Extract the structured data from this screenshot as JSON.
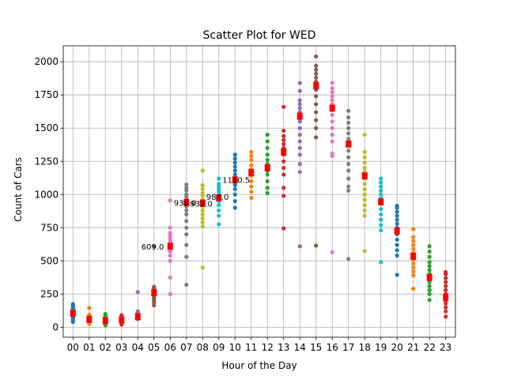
{
  "chart_data": {
    "type": "scatter",
    "title": "Scatter Plot for WED",
    "xlabel": "Hour of the Day",
    "ylabel": "Count of Cars",
    "categories": [
      "00",
      "01",
      "02",
      "03",
      "04",
      "05",
      "06",
      "07",
      "08",
      "09",
      "10",
      "11",
      "12",
      "13",
      "14",
      "15",
      "16",
      "17",
      "18",
      "19",
      "20",
      "21",
      "22",
      "23"
    ],
    "ylim": [
      -75,
      2120
    ],
    "yticks": [
      0,
      250,
      500,
      750,
      1000,
      1250,
      1500,
      1750,
      2000
    ],
    "grid": true,
    "colors": [
      "#1f77b4",
      "#ff7f0e",
      "#2ca02c",
      "#d62728",
      "#9467bd",
      "#8c564b",
      "#e377c2",
      "#7f7f7f",
      "#bcbd22",
      "#17becf",
      "#1f77b4",
      "#ff7f0e",
      "#2ca02c",
      "#d62728",
      "#9467bd",
      "#8c564b",
      "#e377c2",
      "#7f7f7f",
      "#bcbd22",
      "#17becf",
      "#1f77b4",
      "#ff7f0e",
      "#2ca02c",
      "#d62728"
    ],
    "median_color": "#ff0000",
    "series": [
      {
        "x": "00",
        "median": 105,
        "values": [
          40,
          55,
          70,
          80,
          90,
          95,
          100,
          105,
          110,
          115,
          120,
          125,
          135,
          145,
          155,
          165,
          175
        ]
      },
      {
        "x": "01",
        "median": 60,
        "values": [
          25,
          35,
          45,
          50,
          55,
          60,
          65,
          70,
          75,
          85,
          95,
          145
        ]
      },
      {
        "x": "02",
        "median": 50,
        "values": [
          15,
          25,
          35,
          40,
          45,
          50,
          55,
          60,
          70,
          80,
          90,
          100
        ]
      },
      {
        "x": "03",
        "median": 55,
        "values": [
          20,
          30,
          40,
          45,
          50,
          55,
          60,
          70,
          80,
          90
        ]
      },
      {
        "x": "04",
        "median": 80,
        "values": [
          60,
          70,
          75,
          80,
          85,
          90,
          100,
          110,
          120,
          265
        ]
      },
      {
        "x": "05",
        "median": 260,
        "values": [
          165,
          185,
          200,
          215,
          230,
          245,
          255,
          265,
          275,
          285,
          295,
          305,
          610
        ]
      },
      {
        "x": "06",
        "median": 610,
        "values": [
          250,
          375,
          500,
          540,
          570,
          590,
          610,
          630,
          650,
          670,
          690,
          710,
          750,
          955
        ]
      },
      {
        "x": "07",
        "median": 940,
        "values": [
          320,
          530,
          620,
          700,
          750,
          800,
          850,
          880,
          910,
          940,
          960,
          980,
          1000,
          1030,
          1050,
          1075
        ]
      },
      {
        "x": "08",
        "median": 935,
        "values": [
          450,
          760,
          790,
          820,
          850,
          880,
          910,
          935,
          960,
          990,
          1010,
          1040,
          1070,
          1180
        ]
      },
      {
        "x": "09",
        "median": 975,
        "values": [
          775,
          840,
          880,
          920,
          950,
          975,
          1000,
          1020,
          1040,
          1060,
          1080,
          1120
        ]
      },
      {
        "x": "10",
        "median": 1110,
        "values": [
          900,
          950,
          1000,
          1040,
          1070,
          1100,
          1120,
          1150,
          1180,
          1210,
          1240,
          1270,
          1300
        ]
      },
      {
        "x": "11",
        "median": 1165,
        "values": [
          975,
          1020,
          1060,
          1100,
          1140,
          1165,
          1190,
          1220,
          1260,
          1290,
          1320
        ]
      },
      {
        "x": "12",
        "median": 1200,
        "values": [
          1010,
          1050,
          1100,
          1150,
          1180,
          1200,
          1230,
          1260,
          1300,
          1350,
          1400,
          1450
        ]
      },
      {
        "x": "13",
        "median": 1320,
        "values": [
          745,
          990,
          1050,
          1150,
          1200,
          1250,
          1300,
          1320,
          1350,
          1380,
          1410,
          1440,
          1480,
          1660
        ]
      },
      {
        "x": "14",
        "median": 1590,
        "values": [
          610,
          1170,
          1230,
          1300,
          1350,
          1400,
          1450,
          1500,
          1550,
          1590,
          1620,
          1650,
          1680,
          1710,
          1780,
          1840
        ]
      },
      {
        "x": "15",
        "median": 1820,
        "values": [
          615,
          1430,
          1500,
          1560,
          1620,
          1680,
          1740,
          1790,
          1820,
          1850,
          1880,
          1910,
          1940,
          1970,
          2040
        ]
      },
      {
        "x": "16",
        "median": 1650,
        "values": [
          565,
          1290,
          1310,
          1400,
          1450,
          1500,
          1550,
          1600,
          1650,
          1680,
          1710,
          1740,
          1770,
          1800,
          1840
        ]
      },
      {
        "x": "17",
        "median": 1380,
        "values": [
          515,
          1030,
          1060,
          1120,
          1180,
          1230,
          1280,
          1330,
          1380,
          1420,
          1460,
          1500,
          1540,
          1580,
          1630
        ]
      },
      {
        "x": "18",
        "median": 1140,
        "values": [
          575,
          840,
          880,
          920,
          960,
          1000,
          1040,
          1080,
          1120,
          1140,
          1170,
          1200,
          1240,
          1280,
          1320,
          1450
        ]
      },
      {
        "x": "19",
        "median": 945,
        "values": [
          490,
          730,
          770,
          810,
          850,
          890,
          930,
          945,
          970,
          1000,
          1030,
          1060,
          1090,
          1120
        ]
      },
      {
        "x": "20",
        "median": 725,
        "values": [
          395,
          540,
          580,
          620,
          660,
          700,
          725,
          750,
          780,
          810,
          840,
          870,
          900,
          915
        ]
      },
      {
        "x": "21",
        "median": 535,
        "values": [
          290,
          390,
          420,
          450,
          480,
          510,
          535,
          560,
          590,
          620,
          650,
          680,
          740
        ]
      },
      {
        "x": "22",
        "median": 375,
        "values": [
          205,
          250,
          280,
          310,
          340,
          375,
          400,
          430,
          460,
          490,
          530,
          570,
          610
        ]
      },
      {
        "x": "23",
        "median": 225,
        "values": [
          80,
          120,
          150,
          180,
          200,
          225,
          250,
          280,
          310,
          340,
          370,
          400,
          415
        ]
      }
    ],
    "annotations": [
      {
        "x": "05",
        "y": 609.0,
        "text": "609.0"
      },
      {
        "x": "07",
        "y": 938.0,
        "text": "938.0"
      },
      {
        "x": "08",
        "y": 932.0,
        "text": "932.0"
      },
      {
        "x": "09",
        "y": 984.0,
        "text": "984.0"
      },
      {
        "x": "10",
        "y": 1110.5,
        "text": "1110.5"
      }
    ]
  }
}
